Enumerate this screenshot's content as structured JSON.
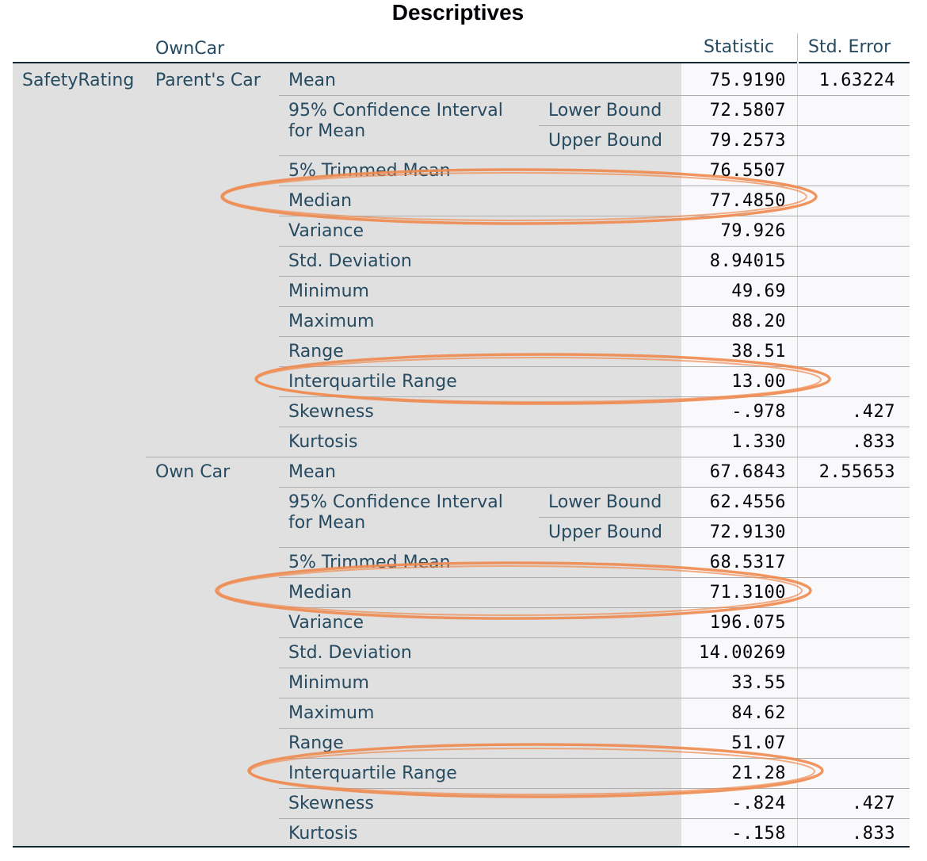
{
  "title": "Descriptives",
  "header": {
    "factor": "OwnCar",
    "statistic": "Statistic",
    "std_error": "Std. Error"
  },
  "dependent": "SafetyRating",
  "ci_label_line1": "95% Confidence Interval",
  "ci_label_line2": "for Mean",
  "groups": [
    {
      "name": "Parent's Car",
      "mean": "75.9190",
      "mean_se": "1.63224",
      "lower_label": "Lower Bound",
      "lower": "72.5807",
      "upper_label": "Upper Bound",
      "upper": "79.2573",
      "trimmed_label": "5% Trimmed Mean",
      "trimmed": "76.5507",
      "median_label": "Median",
      "median": "77.4850",
      "variance_label": "Variance",
      "variance": "79.926",
      "sd_label": "Std. Deviation",
      "sd": "8.94015",
      "min_label": "Minimum",
      "min": "49.69",
      "max_label": "Maximum",
      "max": "88.20",
      "range_label": "Range",
      "range": "38.51",
      "iqr_label": "Interquartile Range",
      "iqr": "13.00",
      "skew_label": "Skewness",
      "skew": "-.978",
      "skew_se": ".427",
      "kurt_label": "Kurtosis",
      "kurt": "1.330",
      "kurt_se": ".833",
      "mean_label": "Mean"
    },
    {
      "name": "Own Car",
      "mean": "67.6843",
      "mean_se": "2.55653",
      "lower_label": "Lower Bound",
      "lower": "62.4556",
      "upper_label": "Upper Bound",
      "upper": "72.9130",
      "trimmed_label": "5% Trimmed Mean",
      "trimmed": "68.5317",
      "median_label": "Median",
      "median": "71.3100",
      "variance_label": "Variance",
      "variance": "196.075",
      "sd_label": "Std. Deviation",
      "sd": "14.00269",
      "min_label": "Minimum",
      "min": "33.55",
      "max_label": "Maximum",
      "max": "84.62",
      "range_label": "Range",
      "range": "51.07",
      "iqr_label": "Interquartile Range",
      "iqr": "21.28",
      "skew_label": "Skewness",
      "skew": "-.824",
      "skew_se": ".427",
      "kurt_label": "Kurtosis",
      "kurt": "-.158",
      "kurt_se": ".833",
      "mean_label": "Mean"
    }
  ],
  "annotation_color": "#ef8a4f"
}
